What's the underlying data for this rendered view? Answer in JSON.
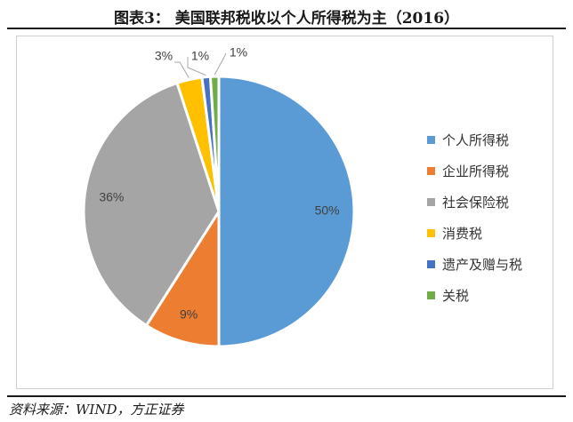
{
  "title": "图表3：  美国联邦税收以个人所得税为主（2016）",
  "source": "资料来源：WIND，方正证券",
  "chart_data": {
    "type": "pie",
    "title": "图表3：  美国联邦税收以个人所得税为主（2016）",
    "legend_position": "right",
    "slices": [
      {
        "name": "个人所得税",
        "value": 50,
        "label": "50%",
        "color": "#5b9bd5"
      },
      {
        "name": "企业所得税",
        "value": 9,
        "label": "9%",
        "color": "#ed7d31"
      },
      {
        "name": "社会保险税",
        "value": 36,
        "label": "36%",
        "color": "#a5a5a5"
      },
      {
        "name": "消费税",
        "value": 3,
        "label": "3%",
        "color": "#ffc000"
      },
      {
        "name": "遗产及赠与税",
        "value": 1,
        "label": "1%",
        "color": "#4472c4"
      },
      {
        "name": "关税",
        "value": 1,
        "label": "1%",
        "color": "#70ad47"
      }
    ]
  }
}
